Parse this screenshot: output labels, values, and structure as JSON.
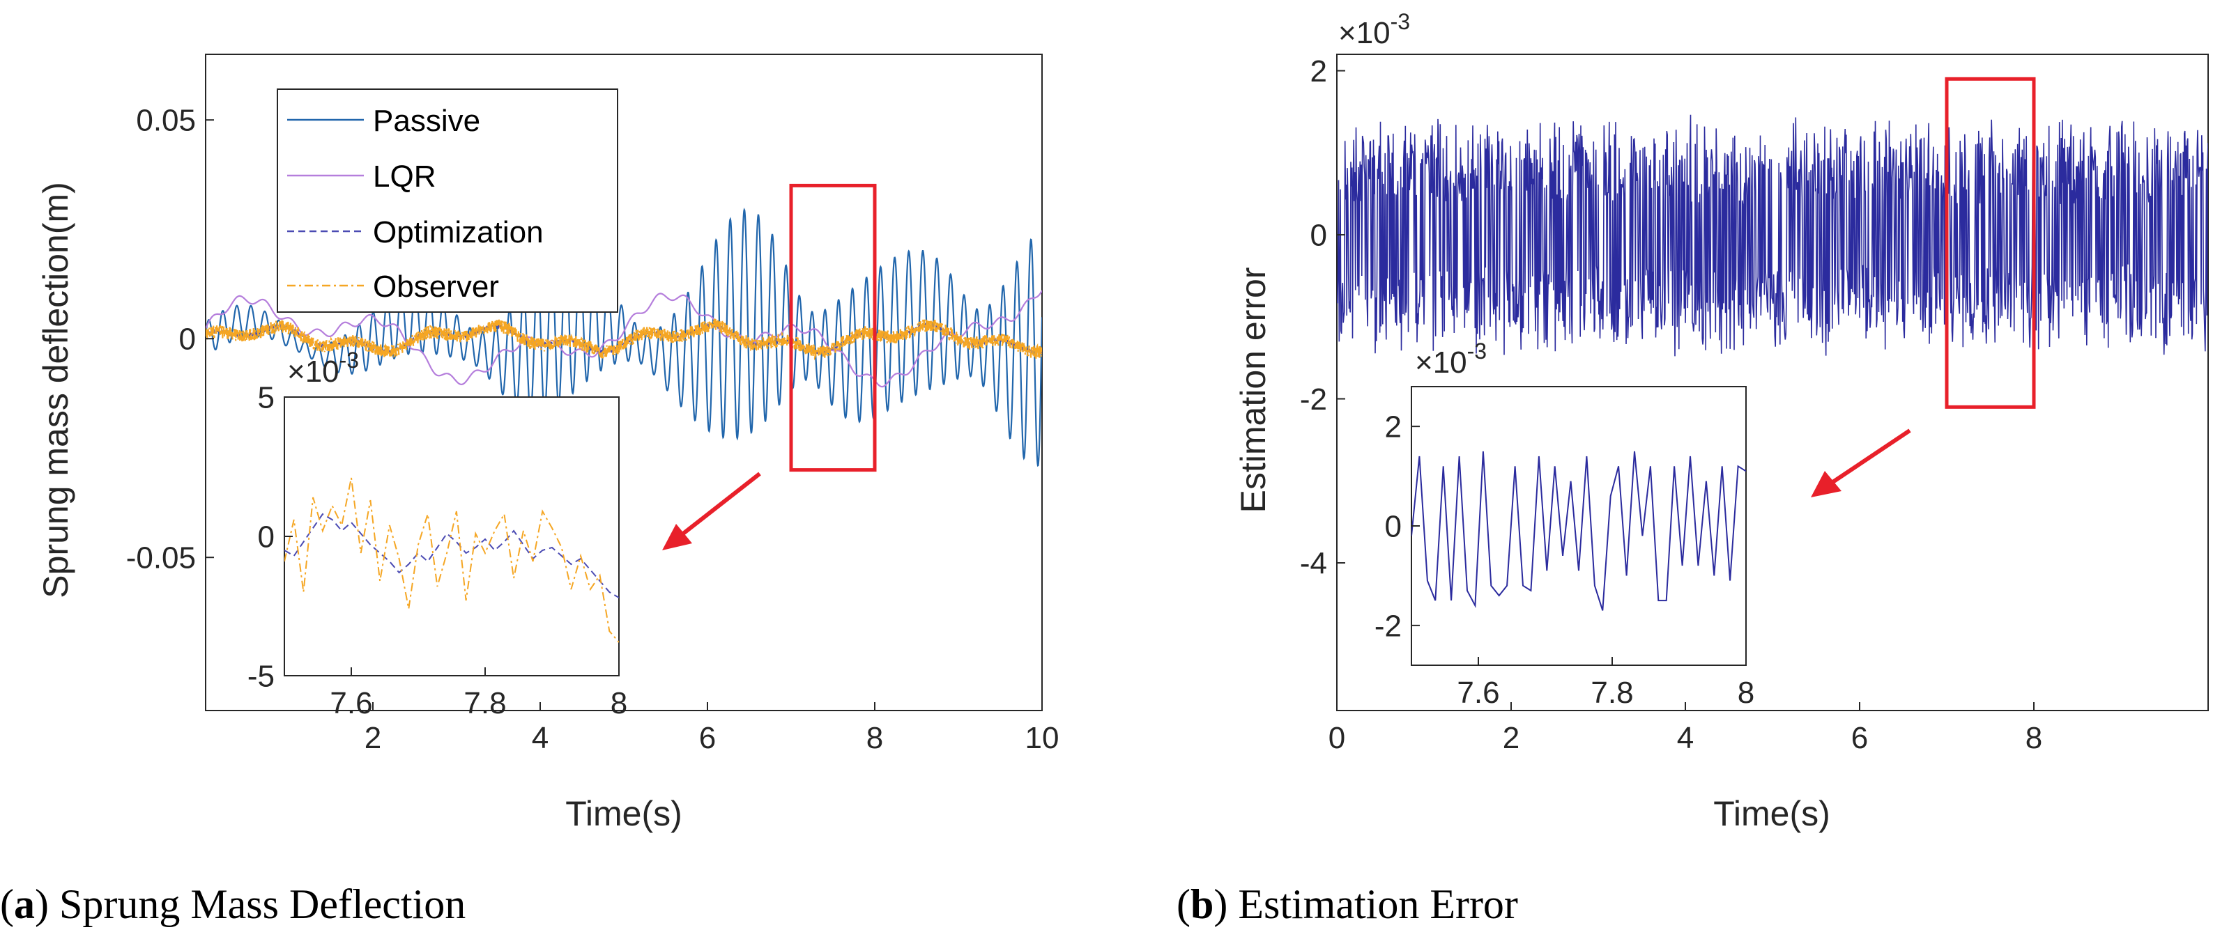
{
  "colors": {
    "passive": "#2166ac",
    "lqr": "#b57edc",
    "optimization": "#4b4bb3",
    "observer": "#f5a623",
    "error": "#2b2b9e",
    "highlight": "#e8202a"
  },
  "captions": [
    {
      "letter": "a",
      "open": "(",
      "close": ")",
      "text": " Sprung Mass Deflection"
    },
    {
      "letter": "b",
      "open": "(",
      "close": ")",
      "text": " Estimation Error"
    }
  ],
  "chart_data": [
    {
      "id": "a",
      "type": "line",
      "title": "",
      "xlabel": "Time(s)",
      "ylabel": "Sprung mass deflection(m)",
      "xlim": [
        0,
        10
      ],
      "ylim": [
        -0.085,
        0.065
      ],
      "xticks": [
        {
          "value": 2,
          "label": "2"
        },
        {
          "value": 4,
          "label": "4"
        },
        {
          "value": 6,
          "label": "6"
        },
        {
          "value": 8,
          "label": "8"
        },
        {
          "value": 10,
          "label": "10"
        }
      ],
      "yticks": [
        {
          "value": 0.05,
          "label": "0.05"
        },
        {
          "value": 0,
          "label": "0"
        },
        {
          "value": -0.05,
          "label": "-0.05"
        }
      ],
      "legend": {
        "position": "top-left",
        "entries": [
          {
            "name": "Passive",
            "style": "solid"
          },
          {
            "name": "LQR",
            "style": "solid"
          },
          {
            "name": "Optimization",
            "style": "dashed"
          },
          {
            "name": "Observer",
            "style": "dashdot"
          }
        ]
      },
      "series": [
        {
          "name": "Passive",
          "description": "oscillation with envelope growing from about 0.005 m near t=1 s to about 0.03 m by t=7-10 s"
        },
        {
          "name": "LQR",
          "description": "slow drift within about ±0.01 m"
        },
        {
          "name": "Optimization",
          "description": "small fluctuation within about ±0.003 m"
        },
        {
          "name": "Observer",
          "description": "small fluctuation within about ±0.004 m"
        }
      ],
      "highlight": {
        "x": [
          7,
          8
        ],
        "y": [
          -0.03,
          0.035
        ]
      },
      "inset": {
        "xlim": [
          7.5,
          8
        ],
        "ylim": [
          -5,
          5
        ],
        "exponent": "-3",
        "xticks": [
          {
            "value": 7.6,
            "label": "7.6"
          },
          {
            "value": 7.8,
            "label": "7.8"
          },
          {
            "value": 8,
            "label": "8"
          }
        ],
        "yticks": [
          {
            "value": 5,
            "label": "5"
          },
          {
            "value": 0,
            "label": "0"
          },
          {
            "value": -5,
            "label": "-5"
          }
        ],
        "series": [
          {
            "name": "Optimization",
            "values": [
              -0.5,
              -0.7,
              -0.2,
              0.3,
              0.8,
              0.6,
              0.2,
              0.5,
              0.1,
              -0.3,
              -0.6,
              -0.9,
              -1.3,
              -1.0,
              -0.6,
              -0.9,
              -0.4,
              0.1,
              -0.2,
              -0.6,
              -0.4,
              -0.1,
              -0.5,
              -0.2,
              0.2,
              -0.3,
              -0.8,
              -0.5,
              -0.4,
              -0.7,
              -1.0,
              -0.8,
              -1.2,
              -1.6,
              -2.0,
              -2.2
            ]
          },
          {
            "name": "Observer",
            "values": [
              -0.9,
              0.6,
              -2.0,
              1.4,
              0.2,
              1.1,
              0.4,
              2.1,
              -0.6,
              1.3,
              -1.6,
              0.4,
              -0.8,
              -2.6,
              -0.3,
              0.8,
              -1.8,
              -0.6,
              0.9,
              -2.3,
              0.1,
              -0.6,
              0.2,
              0.8,
              -1.5,
              0.2,
              -0.9,
              0.9,
              0.3,
              -0.4,
              -1.9,
              -0.7,
              -1.9,
              -1.4,
              -3.4,
              -3.8
            ]
          }
        ]
      }
    },
    {
      "id": "b",
      "type": "line",
      "title": "",
      "xlabel": "Time(s)",
      "ylabel": "Estimation error",
      "xlim": [
        0,
        10
      ],
      "ylim": [
        -5.8,
        2.2
      ],
      "exponent": "-3",
      "xticks": [
        {
          "value": 0,
          "label": "0"
        },
        {
          "value": 2,
          "label": "2"
        },
        {
          "value": 4,
          "label": "4"
        },
        {
          "value": 6,
          "label": "6"
        },
        {
          "value": 8,
          "label": "8"
        }
      ],
      "yticks": [
        {
          "value": 2,
          "label": "2"
        },
        {
          "value": 0,
          "label": "0"
        },
        {
          "value": -2,
          "label": "-2"
        },
        {
          "value": -4,
          "label": "-4"
        }
      ],
      "series": [
        {
          "name": "Estimation error",
          "description": "dense noise between about -1.5e-3 and 1.5e-3 over 0-10 s"
        }
      ],
      "highlight": {
        "x": [
          7,
          8
        ],
        "y": [
          -2.1,
          1.9
        ]
      },
      "inset": {
        "xlim": [
          7.5,
          8
        ],
        "ylim": [
          -2.8,
          2.8
        ],
        "exponent": "-3",
        "xticks": [
          {
            "value": 7.6,
            "label": "7.6"
          },
          {
            "value": 7.8,
            "label": "7.8"
          },
          {
            "value": 8,
            "label": "8"
          }
        ],
        "yticks": [
          {
            "value": 2,
            "label": "2"
          },
          {
            "value": 0,
            "label": "0"
          },
          {
            "value": -2,
            "label": "-2"
          }
        ],
        "series": [
          {
            "name": "Estimation error",
            "values": [
              -0.2,
              1.4,
              -1.1,
              -1.5,
              1.2,
              -1.5,
              1.4,
              -1.3,
              -1.6,
              1.5,
              -1.2,
              -1.4,
              -1.2,
              1.2,
              -1.2,
              -1.3,
              1.4,
              -0.9,
              1.2,
              -0.6,
              0.9,
              -0.9,
              1.4,
              -1.2,
              -1.7,
              0.6,
              1.2,
              -1.0,
              1.5,
              -0.2,
              1.2,
              -1.5,
              -1.5,
              1.2,
              -0.8,
              1.4,
              -0.8,
              0.9,
              -1.0,
              1.2,
              -1.1,
              1.2,
              1.1
            ]
          }
        ]
      }
    }
  ]
}
